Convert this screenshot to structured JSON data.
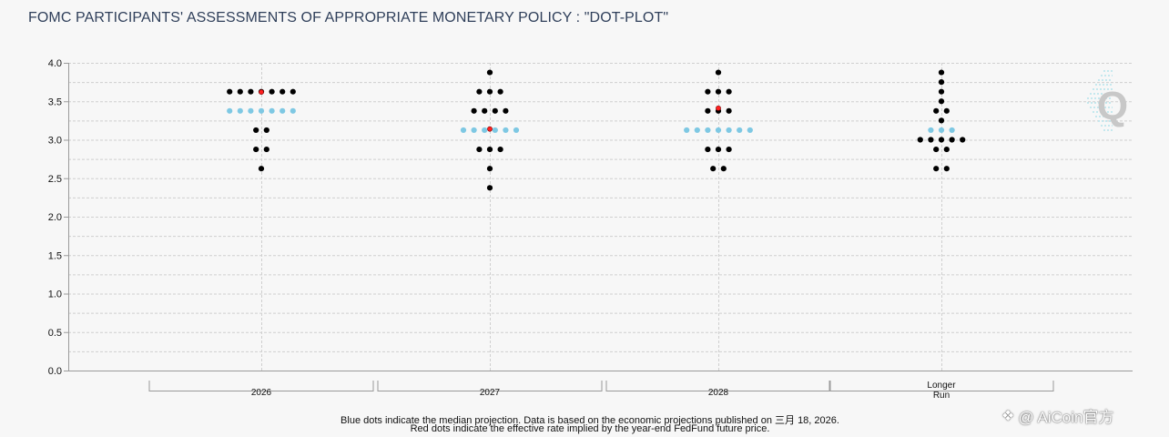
{
  "chart_data": {
    "type": "scatter",
    "title": "FOMC PARTICIPANTS' ASSESSMENTS OF APPROPRIATE MONETARY POLICY : \"DOT-PLOT\"",
    "categories": [
      "2026",
      "2027",
      "2028",
      "Longer\nRun"
    ],
    "ylim": [
      0,
      4
    ],
    "yticks": [
      "0.0",
      "0.5",
      "1.0",
      "1.5",
      "2.0",
      "2.5",
      "3.0",
      "3.5",
      "4.0"
    ],
    "grid": true,
    "series": [
      {
        "name": "participants",
        "color": "#000000",
        "groups": [
          {
            "category": "2026",
            "levels": [
              {
                "y": 3.625,
                "count": 7
              },
              {
                "y": 3.125,
                "count": 2
              },
              {
                "y": 2.875,
                "count": 2
              },
              {
                "y": 2.625,
                "count": 1
              }
            ]
          },
          {
            "category": "2027",
            "levels": [
              {
                "y": 3.875,
                "count": 1
              },
              {
                "y": 3.625,
                "count": 3
              },
              {
                "y": 3.375,
                "count": 4
              },
              {
                "y": 2.875,
                "count": 3
              },
              {
                "y": 2.625,
                "count": 1
              },
              {
                "y": 2.375,
                "count": 1
              }
            ]
          },
          {
            "category": "2028",
            "levels": [
              {
                "y": 3.875,
                "count": 1
              },
              {
                "y": 3.625,
                "count": 3
              },
              {
                "y": 3.375,
                "count": 3
              },
              {
                "y": 2.875,
                "count": 3
              },
              {
                "y": 2.625,
                "count": 2
              }
            ]
          },
          {
            "category": "Longer\nRun",
            "levels": [
              {
                "y": 3.875,
                "count": 1
              },
              {
                "y": 3.75,
                "count": 1
              },
              {
                "y": 3.625,
                "count": 1
              },
              {
                "y": 3.5,
                "count": 1
              },
              {
                "y": 3.375,
                "count": 2
              },
              {
                "y": 3.25,
                "count": 1
              },
              {
                "y": 3.0,
                "count": 5
              },
              {
                "y": 2.875,
                "count": 2
              },
              {
                "y": 2.625,
                "count": 2
              }
            ]
          }
        ]
      },
      {
        "name": "median",
        "color": "#7ec8e3",
        "groups": [
          {
            "category": "2026",
            "levels": [
              {
                "y": 3.375,
                "count": 7
              }
            ]
          },
          {
            "category": "2027",
            "levels": [
              {
                "y": 3.125,
                "count": 6
              }
            ]
          },
          {
            "category": "2028",
            "levels": [
              {
                "y": 3.125,
                "count": 7
              }
            ]
          },
          {
            "category": "Longer\nRun",
            "levels": [
              {
                "y": 3.125,
                "count": 3
              }
            ]
          }
        ]
      },
      {
        "name": "implied",
        "color": "#ff2020",
        "points": [
          {
            "category": "2026",
            "y": 3.62
          },
          {
            "category": "2027",
            "y": 3.14
          },
          {
            "category": "2028",
            "y": 3.41
          }
        ]
      }
    ]
  },
  "footnote": {
    "line1": "Blue dots indicate the median projection. Data is based on the economic projections published on 三月 18, 2026.",
    "line2": "Red dots indicate the effective rate implied by the year-end FedFund future price."
  },
  "watermark": {
    "text": "@ AiCoin官方"
  }
}
